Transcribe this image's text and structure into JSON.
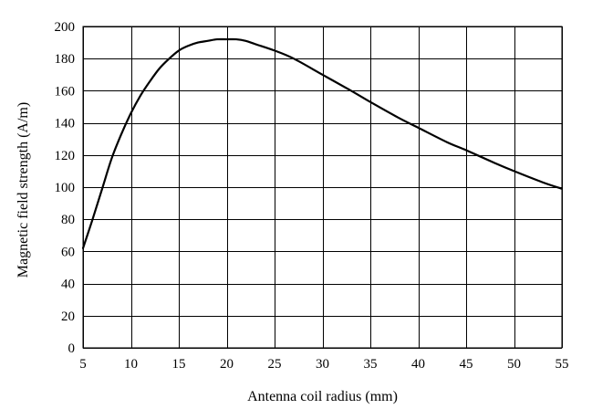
{
  "chart_data": {
    "type": "line",
    "xlabel": "Antenna coil radius (mm)",
    "ylabel": "Magnetic field strength (A/m)",
    "xlim": [
      5,
      55
    ],
    "ylim": [
      0,
      200
    ],
    "xticks": [
      5,
      10,
      15,
      20,
      25,
      30,
      35,
      40,
      45,
      50,
      55
    ],
    "yticks": [
      0,
      20,
      40,
      60,
      80,
      100,
      120,
      140,
      160,
      180,
      200
    ],
    "grid": true,
    "legend": "none",
    "series": [
      {
        "color": "#000000",
        "x": [
          5,
          6,
          7,
          8,
          9,
          10,
          11,
          12,
          13,
          14,
          15,
          16,
          17,
          18,
          19,
          20,
          21,
          22,
          23,
          25,
          27,
          30,
          33,
          35,
          38,
          40,
          43,
          45,
          48,
          50,
          53,
          55
        ],
        "y": [
          62,
          80,
          99,
          118,
          133,
          146,
          157,
          166,
          174,
          180,
          185,
          188,
          190,
          191,
          192,
          192,
          192,
          191,
          189,
          185,
          180,
          170,
          160,
          153,
          143,
          137,
          128,
          123,
          115,
          110,
          103,
          99
        ]
      }
    ]
  }
}
